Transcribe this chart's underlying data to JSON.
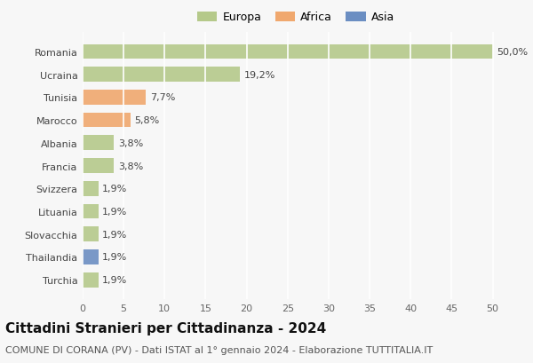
{
  "countries": [
    "Romania",
    "Ucraina",
    "Tunisia",
    "Marocco",
    "Albania",
    "Francia",
    "Svizzera",
    "Lituania",
    "Slovacchia",
    "Thailandia",
    "Turchia"
  ],
  "values": [
    50.0,
    19.2,
    7.7,
    5.8,
    3.8,
    3.8,
    1.9,
    1.9,
    1.9,
    1.9,
    1.9
  ],
  "labels": [
    "50,0%",
    "19,2%",
    "7,7%",
    "5,8%",
    "3,8%",
    "3,8%",
    "1,9%",
    "1,9%",
    "1,9%",
    "1,9%",
    "1,9%"
  ],
  "continents": [
    "Europa",
    "Europa",
    "Africa",
    "Africa",
    "Europa",
    "Europa",
    "Europa",
    "Europa",
    "Europa",
    "Asia",
    "Europa"
  ],
  "colors": {
    "Europa": "#b5c98a",
    "Africa": "#f0a86e",
    "Asia": "#6b8ec2"
  },
  "legend_order": [
    "Europa",
    "Africa",
    "Asia"
  ],
  "legend_colors": {
    "Europa": "#b5c98a",
    "Africa": "#f0a86e",
    "Asia": "#6b8ec2"
  },
  "xlim": [
    0,
    52
  ],
  "xticks": [
    0,
    5,
    10,
    15,
    20,
    25,
    30,
    35,
    40,
    45,
    50
  ],
  "title": "Cittadini Stranieri per Cittadinanza - 2024",
  "subtitle": "COMUNE DI CORANA (PV) - Dati ISTAT al 1° gennaio 2024 - Elaborazione TUTTITALIA.IT",
  "background_color": "#f7f7f7",
  "grid_color": "#ffffff",
  "bar_height": 0.65,
  "title_fontsize": 11,
  "subtitle_fontsize": 8,
  "label_fontsize": 8,
  "tick_fontsize": 8,
  "legend_fontsize": 9
}
